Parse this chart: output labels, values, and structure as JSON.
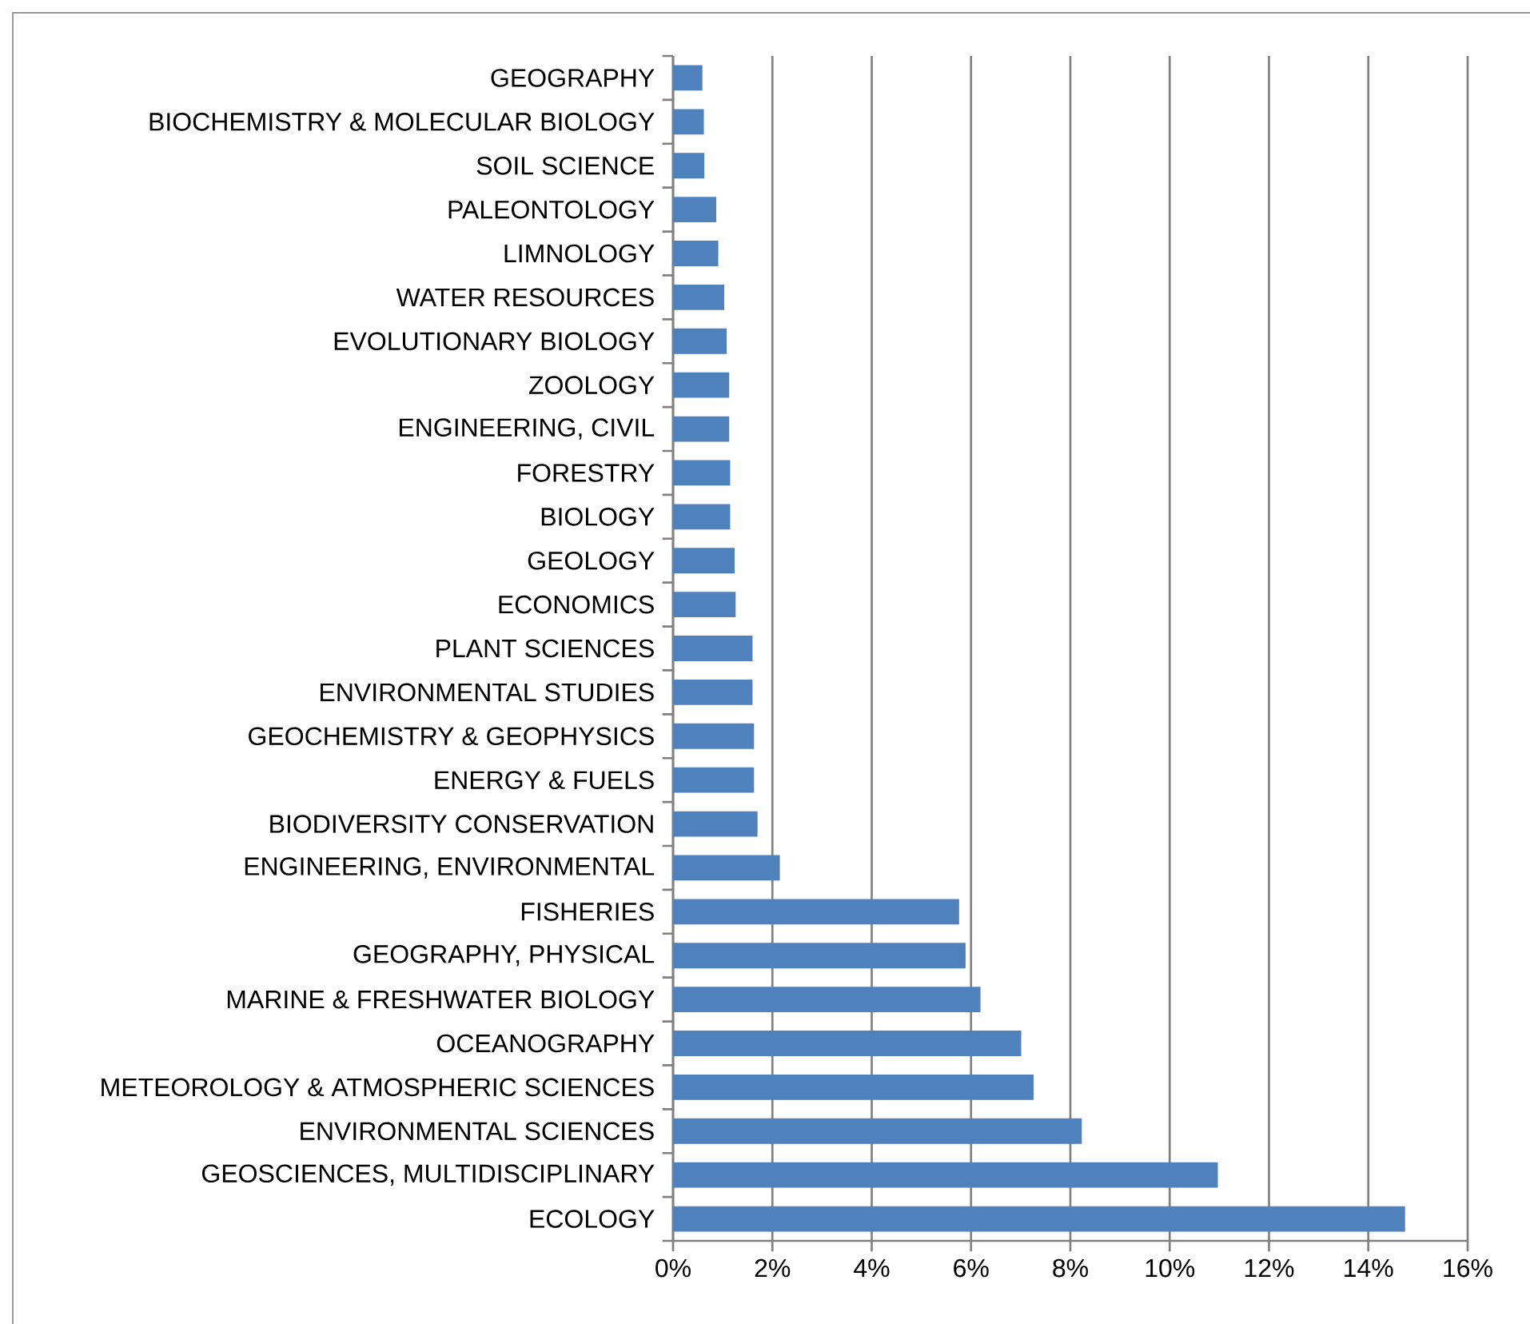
{
  "chart_data": {
    "type": "bar",
    "orientation": "horizontal",
    "color": "#4f81bd",
    "grid": "x",
    "categories": [
      "GEOGRAPHY",
      "BIOCHEMISTRY & MOLECULAR BIOLOGY",
      "SOIL SCIENCE",
      "PALEONTOLOGY",
      "LIMNOLOGY",
      "WATER RESOURCES",
      "EVOLUTIONARY BIOLOGY",
      "ZOOLOGY",
      "ENGINEERING, CIVIL",
      "FORESTRY",
      "BIOLOGY",
      "GEOLOGY",
      "ECONOMICS",
      "PLANT SCIENCES",
      "ENVIRONMENTAL STUDIES",
      "GEOCHEMISTRY & GEOPHYSICS",
      "ENERGY & FUELS",
      "BIODIVERSITY CONSERVATION",
      "ENGINEERING, ENVIRONMENTAL",
      "FISHERIES",
      "GEOGRAPHY, PHYSICAL",
      "MARINE & FRESHWATER BIOLOGY",
      "OCEANOGRAPHY",
      "METEOROLOGY & ATMOSPHERIC SCIENCES",
      "ENVIRONMENTAL SCIENCES",
      "GEOSCIENCES, MULTIDISCIPLINARY",
      "ECOLOGY"
    ],
    "values": [
      0.59,
      0.62,
      0.63,
      0.87,
      0.91,
      1.03,
      1.08,
      1.13,
      1.13,
      1.15,
      1.15,
      1.24,
      1.26,
      1.6,
      1.6,
      1.63,
      1.63,
      1.7,
      2.15,
      5.76,
      5.89,
      6.19,
      7.01,
      7.26,
      8.23,
      10.97,
      14.74
    ],
    "xlim": [
      0,
      16
    ],
    "xticks": [
      {
        "value": 0,
        "label": "0%"
      },
      {
        "value": 2,
        "label": "2%"
      },
      {
        "value": 4,
        "label": "4%"
      },
      {
        "value": 6,
        "label": "6%"
      },
      {
        "value": 8,
        "label": "8%"
      },
      {
        "value": 10,
        "label": "10%"
      },
      {
        "value": 12,
        "label": "12%"
      },
      {
        "value": 14,
        "label": "14%"
      },
      {
        "value": 16,
        "label": "16%"
      }
    ]
  }
}
